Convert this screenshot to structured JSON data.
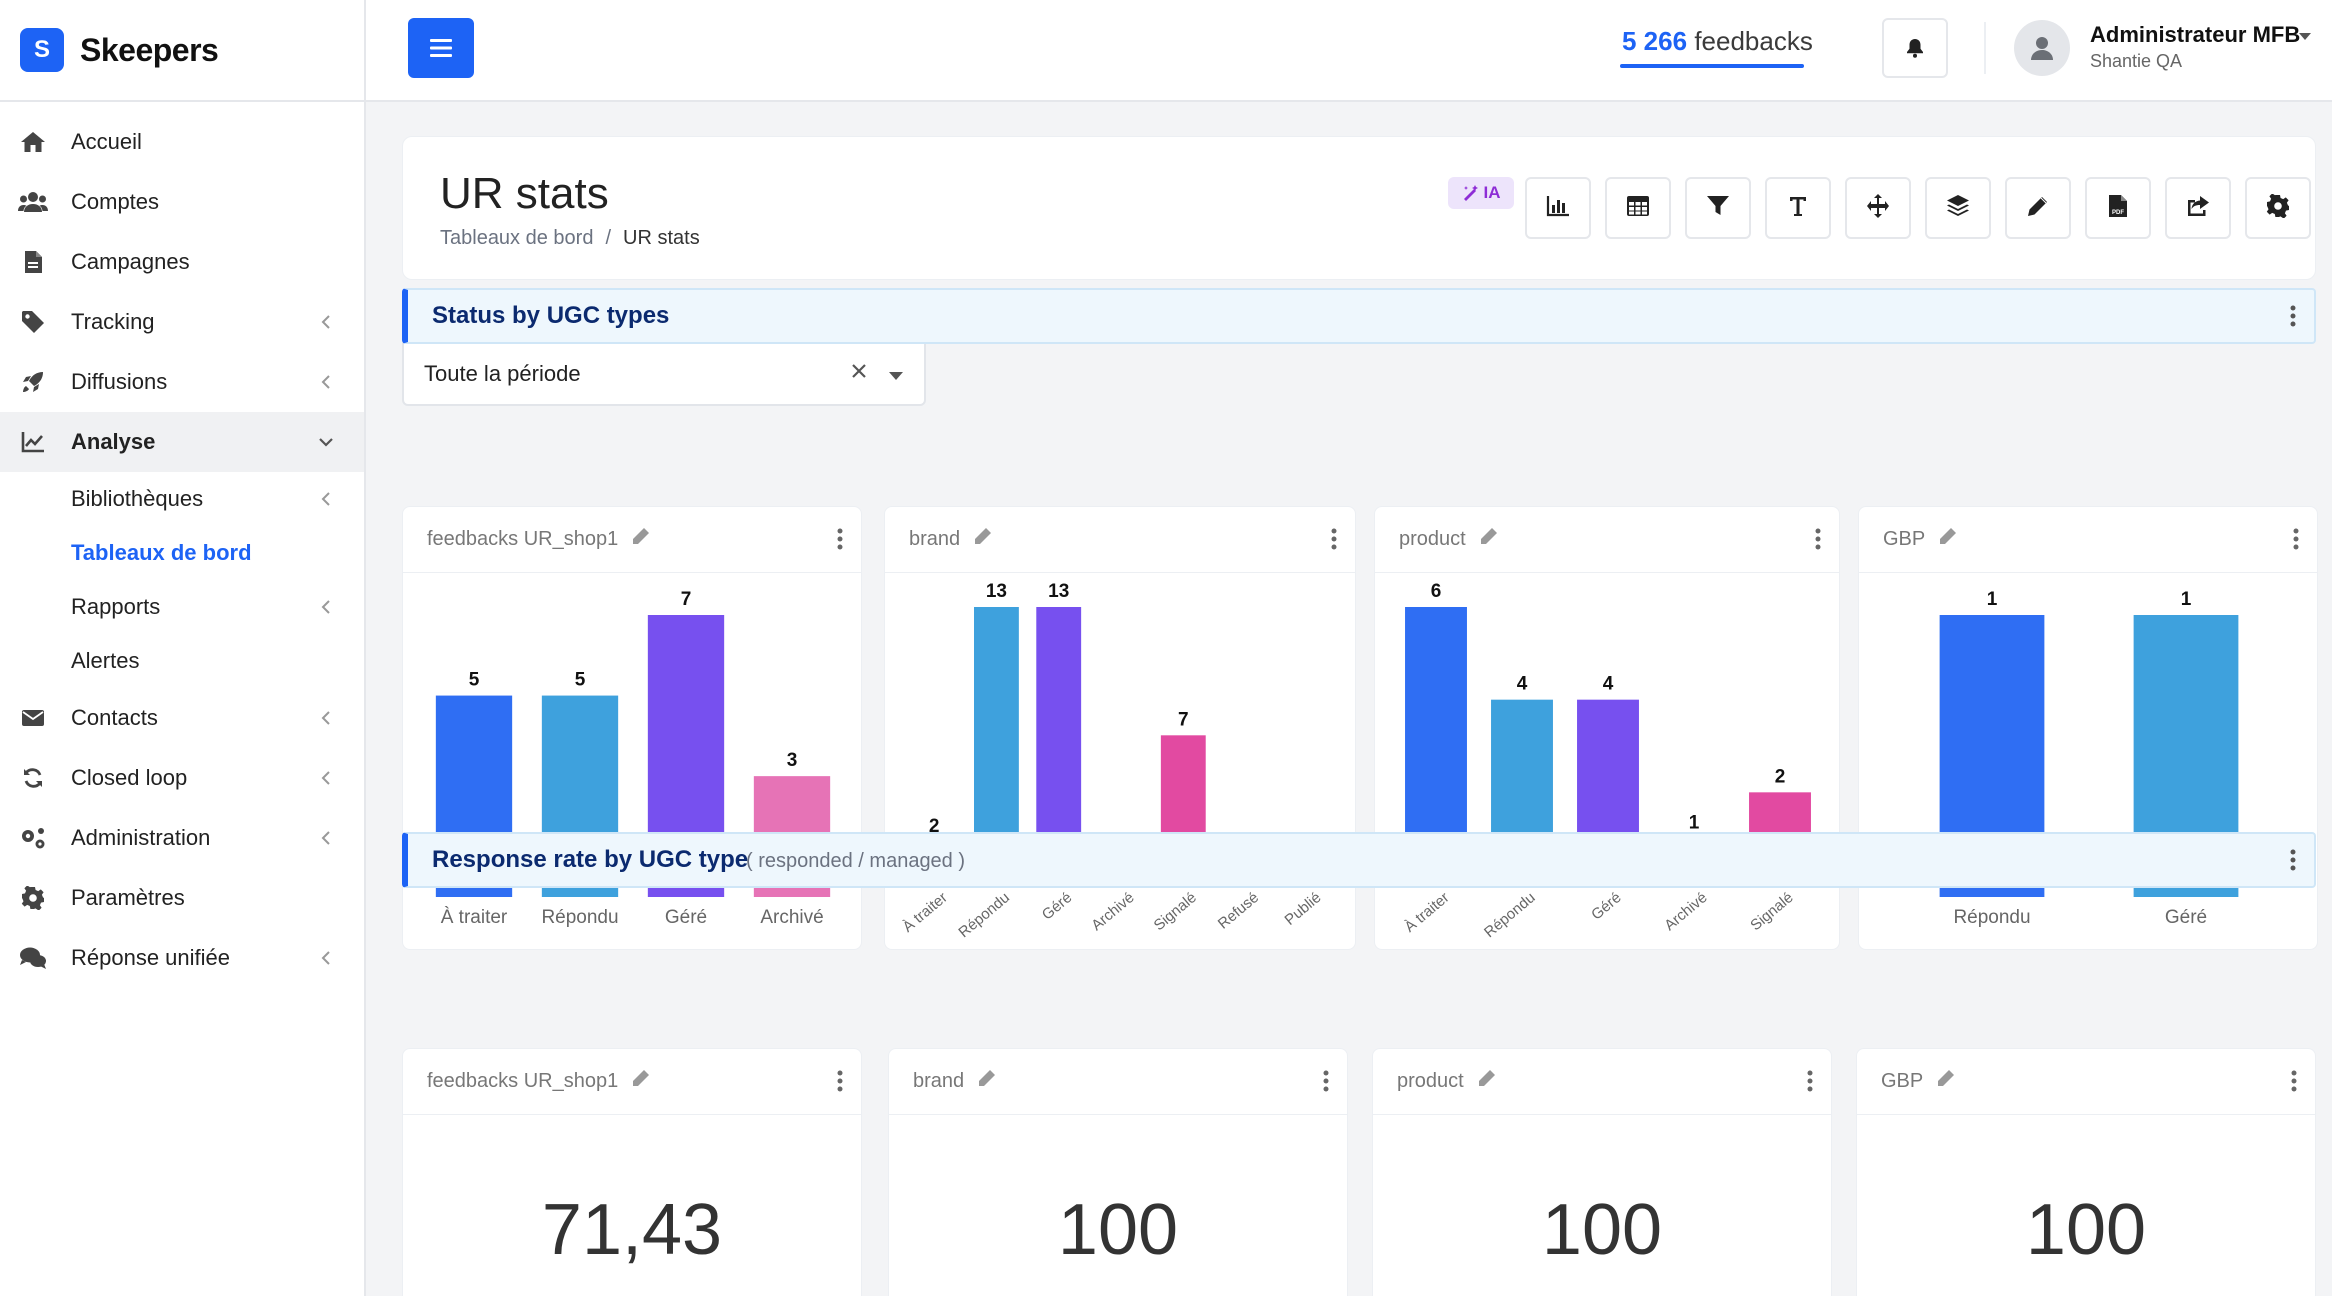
{
  "app": {
    "logo_letter": "S",
    "name": "Skeepers"
  },
  "sidebar": {
    "items": [
      {
        "label": "Accueil",
        "icon": "home-icon",
        "chevron": false
      },
      {
        "label": "Comptes",
        "icon": "users-icon",
        "chevron": false
      },
      {
        "label": "Campagnes",
        "icon": "document-icon",
        "chevron": false
      },
      {
        "label": "Tracking",
        "icon": "tag-icon",
        "chevron": true
      },
      {
        "label": "Diffusions",
        "icon": "rocket-icon",
        "chevron": true
      },
      {
        "label": "Analyse",
        "icon": "chart-line-icon",
        "chevron": true,
        "expanded": true
      },
      {
        "label": "Contacts",
        "icon": "envelope-icon",
        "chevron": true
      },
      {
        "label": "Closed loop",
        "icon": "sync-icon",
        "chevron": true
      },
      {
        "label": "Administration",
        "icon": "cogs-icon",
        "chevron": true
      },
      {
        "label": "Paramètres",
        "icon": "gear-icon",
        "chevron": false
      },
      {
        "label": "Réponse unifiée",
        "icon": "comments-icon",
        "chevron": true
      }
    ],
    "analyse_children": [
      {
        "label": "Bibliothèques",
        "chevron": true
      },
      {
        "label": "Tableaux de bord",
        "chevron": false,
        "current": true
      },
      {
        "label": "Rapports",
        "chevron": true
      },
      {
        "label": "Alertes",
        "chevron": false
      }
    ]
  },
  "topbar": {
    "feedbacks_count": "5 266",
    "feedbacks_label": "feedbacks",
    "user_name": "Administrateur MFB",
    "user_org": "Shantie QA"
  },
  "header": {
    "title": "UR stats",
    "breadcrumb": [
      "Tableaux de bord",
      "UR stats"
    ],
    "ia_label": "IA",
    "tools": [
      "bar-chart-icon",
      "table-icon",
      "filter-icon",
      "text-icon",
      "move-icon",
      "layers-icon",
      "pencil-icon",
      "pdf-icon",
      "share-icon",
      "gear-icon"
    ]
  },
  "filter": {
    "label": "date",
    "value": "Toute la période"
  },
  "sections": [
    {
      "title": "Status by UGC types",
      "subtitle": ""
    },
    {
      "title": "Response rate by UGC type",
      "subtitle": "( responded / managed )"
    }
  ],
  "colors": {
    "À traiter": "#2f6ef3",
    "Répondu": "#3ea1dd",
    "Géré": "#7750ef",
    "Archivé": "#c7b3fb",
    "Archivé_shop": "#e673b6",
    "Signalé": "#e24aa1",
    "Refusé": "#fa8c3e",
    "Publié": "#fdbb2d"
  },
  "chart_data": [
    {
      "type": "bar",
      "title": "feedbacks UR_shop1",
      "categories": [
        "À traiter",
        "Répondu",
        "Géré",
        "Archivé"
      ],
      "values": [
        5,
        5,
        7,
        3
      ],
      "colors": [
        "#2f6ef3",
        "#3ea1dd",
        "#7750ef",
        "#e673b6"
      ],
      "ylim": [
        0,
        7
      ],
      "rotated_labels": false
    },
    {
      "type": "bar",
      "title": "brand",
      "categories": [
        "À traiter",
        "Répondu",
        "Géré",
        "Archivé",
        "Signalé",
        "Refusé",
        "Publié"
      ],
      "values": [
        2,
        13,
        13,
        1,
        7,
        1,
        1
      ],
      "colors": [
        "#2f6ef3",
        "#3ea1dd",
        "#7750ef",
        "#c7b3fb",
        "#e24aa1",
        "#fa8c3e",
        "#fdbb2d"
      ],
      "ylim": [
        0,
        13
      ],
      "rotated_labels": true
    },
    {
      "type": "bar",
      "title": "product",
      "categories": [
        "À traiter",
        "Répondu",
        "Géré",
        "Archivé",
        "Signalé"
      ],
      "values": [
        6,
        4,
        4,
        1,
        2
      ],
      "colors": [
        "#2f6ef3",
        "#3ea1dd",
        "#7750ef",
        "#c7b3fb",
        "#e24aa1"
      ],
      "ylim": [
        0,
        6
      ],
      "rotated_labels": true
    },
    {
      "type": "bar",
      "title": "GBP",
      "categories": [
        "Répondu",
        "Géré"
      ],
      "values": [
        1,
        1
      ],
      "colors": [
        "#2f6ef3",
        "#3ea1dd"
      ],
      "ylim": [
        0,
        1
      ],
      "rotated_labels": false
    }
  ],
  "kpis": [
    {
      "title": "feedbacks UR_shop1",
      "value": "71,43"
    },
    {
      "title": "brand",
      "value": "100"
    },
    {
      "title": "product",
      "value": "100"
    },
    {
      "title": "GBP",
      "value": "100"
    }
  ]
}
